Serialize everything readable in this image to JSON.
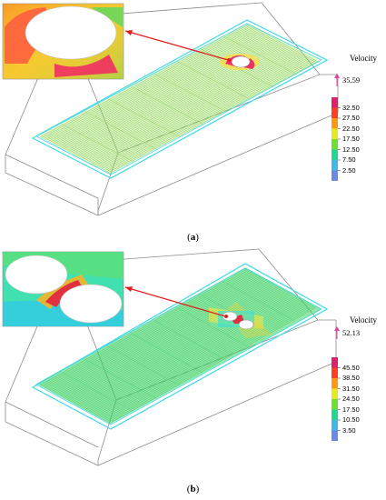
{
  "panels": [
    {
      "id": "a",
      "caption_letter": "a",
      "legend": {
        "title": "Velocity",
        "max_label": "35.59",
        "ticks": [
          "32.50",
          "27.50",
          "22.50",
          "17.50",
          "12.50",
          "7.50",
          "2.50"
        ],
        "colors": [
          "#e0206a",
          "#ff4020",
          "#ff9a10",
          "#e8e820",
          "#6ee030",
          "#20d890",
          "#40b8e8",
          "#6a8ae8"
        ]
      },
      "inset_colors": {
        "background": "#f4c830",
        "hot": "#f03060",
        "warm": "#ff8a2a",
        "cool": "#58d860"
      },
      "field_color": "#70c830"
    },
    {
      "id": "b",
      "caption_letter": "b",
      "legend": {
        "title": "Velocity",
        "max_label": "52.13",
        "ticks": [
          "45.50",
          "38.50",
          "31.50",
          "24.50",
          "17.50",
          "10.50",
          "3.50"
        ],
        "colors": [
          "#e0206a",
          "#ff4020",
          "#ff9a10",
          "#e8e820",
          "#6ee030",
          "#20d890",
          "#40b8e8",
          "#6a8ae8"
        ]
      },
      "inset_colors": {
        "background": "#40e0b0",
        "hot": "#e03040",
        "warm": "#ffb020",
        "cool": "#30c8f0"
      },
      "field_color": "#30d060"
    }
  ]
}
